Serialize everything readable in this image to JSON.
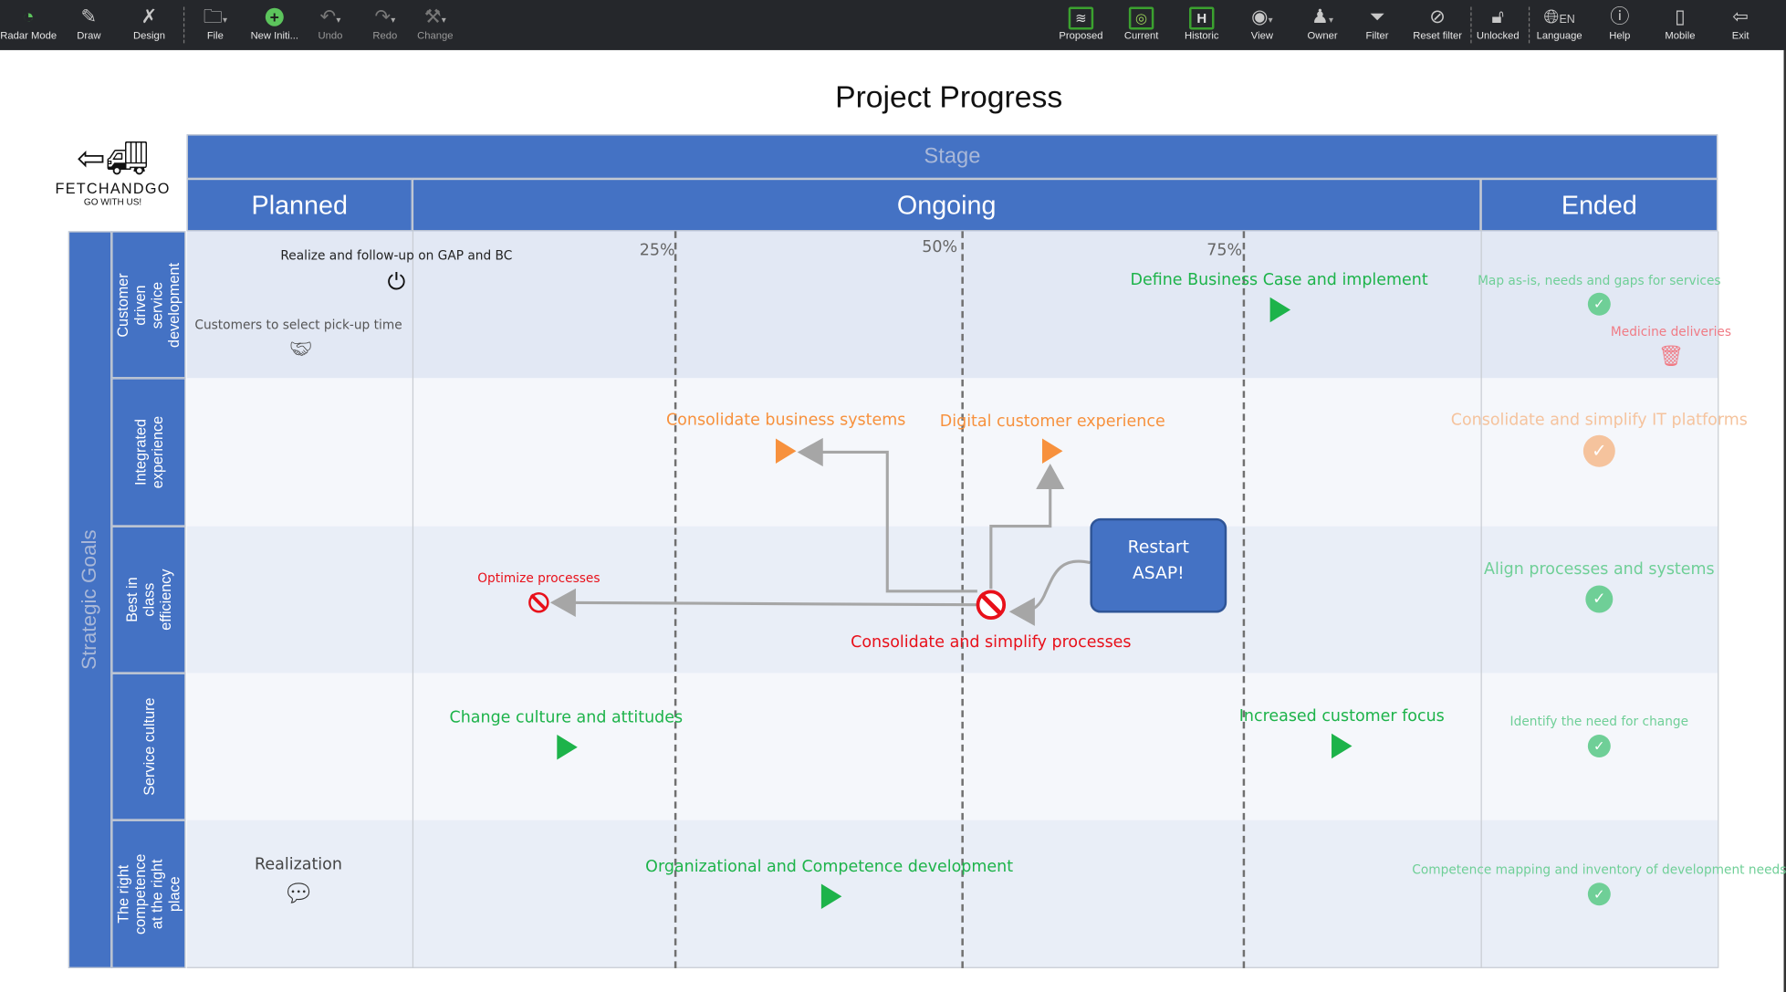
{
  "toolbar": {
    "left": [
      {
        "label": "Radar Mode",
        "icon": "radar-icon"
      },
      {
        "label": "Draw",
        "icon": "pencil-icon"
      },
      {
        "label": "Design",
        "icon": "design-tools-icon"
      },
      {
        "label": "File",
        "icon": "folder-icon"
      },
      {
        "label": "New Initi...",
        "icon": "plus-circle-icon"
      },
      {
        "label": "Undo",
        "icon": "undo-icon"
      },
      {
        "label": "Redo",
        "icon": "redo-icon"
      },
      {
        "label": "Change",
        "icon": "hammer-icon"
      }
    ],
    "right": [
      {
        "label": "Proposed",
        "icon": "layers-icon"
      },
      {
        "label": "Current",
        "icon": "radar-screen-icon"
      },
      {
        "label": "Historic",
        "icon": "h-icon",
        "glyph": "H"
      },
      {
        "label": "View",
        "icon": "eye-icon"
      },
      {
        "label": "Owner",
        "icon": "person-icon"
      },
      {
        "label": "Filter",
        "icon": "filter-icon"
      },
      {
        "label": "Reset filter",
        "icon": "reset-filter-icon"
      },
      {
        "label": "Unlocked",
        "icon": "unlock-icon"
      },
      {
        "label": "Language",
        "icon": "globe-icon",
        "value": "EN"
      },
      {
        "label": "Help",
        "icon": "help-icon"
      },
      {
        "label": "Mobile",
        "icon": "mobile-icon"
      },
      {
        "label": "Exit",
        "icon": "exit-icon"
      }
    ]
  },
  "title": "Project Progress",
  "logo": {
    "name": "FETCHANDGO",
    "tagline": "GO WITH US!"
  },
  "header": {
    "stage": "Stage",
    "columns": [
      "Planned",
      "Ongoing",
      "Ended"
    ]
  },
  "strategic_goals": "Strategic Goals",
  "lanes": [
    "Customer driven service development",
    "Integrated experience",
    "Best in class efficiency",
    "Service culture",
    "The right competence at the right place"
  ],
  "milestones": [
    "25%",
    "50%",
    "75%"
  ],
  "colors": {
    "header": "#4472c4",
    "green": "#1db34a",
    "orange": "#f7913d",
    "red": "#e8101a",
    "done_green": "#6fcf97",
    "done_orange": "#f5c39d",
    "pink": "#f07b85"
  },
  "items": {
    "realize": "Realize and follow-up on GAP and BC",
    "customers": "Customers to select pick-up time",
    "define": "Define Business Case and implement",
    "map": "Map as-is, needs and gaps for services",
    "medicine": "Medicine deliveries",
    "cons_business": "Consolidate business systems",
    "digital": "Digital customer experience",
    "cons_it": "Consolidate and simplify IT platforms",
    "optimize": "Optimize processes",
    "cons_proc": "Consolidate and simplify processes",
    "align": "Align processes and systems",
    "change": "Change culture and attitudes",
    "increased": "Increased customer focus",
    "identify": "Identify the need for change",
    "realization": "Realization",
    "org": "Organizational and Competence development",
    "competence": "Competence mapping and inventory of development needs"
  },
  "note": {
    "text": "Restart ASAP!"
  }
}
